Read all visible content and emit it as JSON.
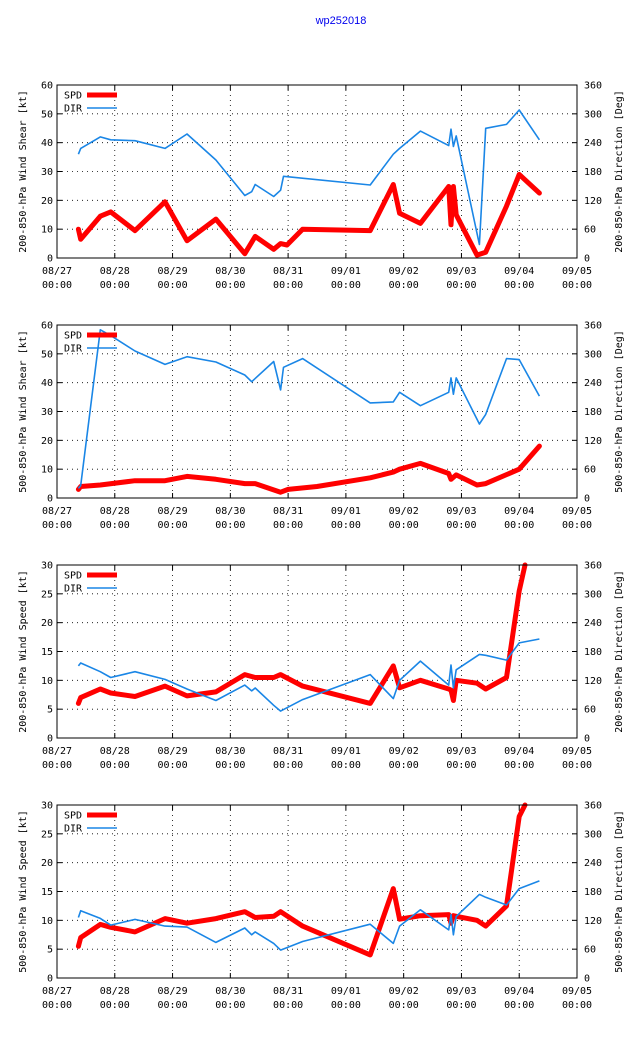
{
  "title": "wp252018",
  "colors": {
    "spd": "#ff0000",
    "dir": "#1a86e6",
    "title": "#0000ee"
  },
  "chart_data": [
    {
      "type": "line",
      "ylabel_left": "200-850-hPa Wind Shear [kt]",
      "ylabel_right": "200-850-hPa Direction [Deg]",
      "ylim": [
        0,
        60
      ],
      "yticks": [
        0,
        10,
        20,
        30,
        40,
        50,
        60
      ],
      "y2lim": [
        0,
        360
      ],
      "y2ticks": [
        0,
        60,
        120,
        180,
        240,
        300,
        360
      ],
      "xlim": [
        0,
        9
      ],
      "xticks": [
        {
          "value": 0,
          "date": "08/27",
          "time": "00:00"
        },
        {
          "value": 1,
          "date": "08/28",
          "time": "00:00"
        },
        {
          "value": 2,
          "date": "08/29",
          "time": "00:00"
        },
        {
          "value": 3,
          "date": "08/30",
          "time": "00:00"
        },
        {
          "value": 4,
          "date": "08/31",
          "time": "00:00"
        },
        {
          "value": 5,
          "date": "09/01",
          "time": "00:00"
        },
        {
          "value": 6,
          "date": "09/02",
          "time": "00:00"
        },
        {
          "value": 7,
          "date": "09/03",
          "time": "00:00"
        },
        {
          "value": 8,
          "date": "09/04",
          "time": "00:00"
        },
        {
          "value": 9,
          "date": "09/05",
          "time": "00:00"
        }
      ],
      "legend": [
        "SPD",
        "DIR"
      ],
      "series": [
        {
          "name": "SPD",
          "axis": "left",
          "x": [
            0.37,
            0.41,
            0.75,
            0.93,
            1.35,
            1.87,
            2.25,
            2.75,
            3.25,
            3.43,
            3.75,
            3.87,
            3.98,
            4.25,
            5.42,
            5.82,
            5.93,
            6.29,
            6.78,
            6.82,
            6.86,
            6.91,
            7.27,
            7.42,
            7.78,
            8.0,
            8.35
          ],
          "y": [
            10,
            6.5,
            14.5,
            16,
            9.5,
            19.5,
            6,
            13.5,
            1.5,
            7.5,
            3,
            5,
            4.5,
            10,
            9.5,
            25.5,
            15.5,
            12,
            24.8,
            11.5,
            24.8,
            15,
            1,
            2,
            18,
            29,
            22.5
          ]
        },
        {
          "name": "DIR",
          "axis": "right",
          "x": [
            0.37,
            0.41,
            0.75,
            0.93,
            1.35,
            1.87,
            2.25,
            2.75,
            3.25,
            3.37,
            3.43,
            3.75,
            3.87,
            3.92,
            5.42,
            5.82,
            5.93,
            6.29,
            6.78,
            6.82,
            6.86,
            6.91,
            7.31,
            7.42,
            7.78,
            8.0,
            8.35
          ],
          "y": [
            216,
            228,
            252,
            246,
            244,
            228,
            258,
            204,
            130,
            138,
            153,
            128,
            141,
            170,
            152,
            216,
            228,
            264,
            234,
            268,
            232,
            254,
            28,
            270,
            278,
            308,
            246
          ]
        }
      ]
    },
    {
      "type": "line",
      "ylabel_left": "500-850-hPa Wind Shear [kt]",
      "ylabel_right": "500-850-hPa Direction [Deg]",
      "ylim": [
        0,
        60
      ],
      "yticks": [
        0,
        10,
        20,
        30,
        40,
        50,
        60
      ],
      "y2lim": [
        0,
        360
      ],
      "y2ticks": [
        0,
        60,
        120,
        180,
        240,
        300,
        360
      ],
      "xlim": [
        0,
        9
      ],
      "xticks": [
        {
          "value": 0,
          "date": "08/27",
          "time": "00:00"
        },
        {
          "value": 1,
          "date": "08/28",
          "time": "00:00"
        },
        {
          "value": 2,
          "date": "08/29",
          "time": "00:00"
        },
        {
          "value": 3,
          "date": "08/30",
          "time": "00:00"
        },
        {
          "value": 4,
          "date": "08/31",
          "time": "00:00"
        },
        {
          "value": 5,
          "date": "09/01",
          "time": "00:00"
        },
        {
          "value": 6,
          "date": "09/02",
          "time": "00:00"
        },
        {
          "value": 7,
          "date": "09/03",
          "time": "00:00"
        },
        {
          "value": 8,
          "date": "09/04",
          "time": "00:00"
        },
        {
          "value": 9,
          "date": "09/05",
          "time": "00:00"
        }
      ],
      "legend": [
        "SPD",
        "DIR"
      ],
      "series": [
        {
          "name": "SPD",
          "axis": "left",
          "x": [
            0.37,
            0.41,
            0.75,
            1.35,
            1.87,
            2.25,
            2.75,
            3.25,
            3.43,
            3.87,
            4.0,
            4.5,
            5.42,
            5.82,
            5.93,
            6.29,
            6.78,
            6.82,
            6.91,
            7.27,
            7.42,
            8.0,
            8.35
          ],
          "y": [
            3,
            4,
            4.5,
            6,
            6,
            7.5,
            6.5,
            5,
            5,
            2,
            3,
            4,
            7,
            9,
            10,
            12,
            8.5,
            6.5,
            8,
            4.5,
            5,
            10,
            18
          ]
        },
        {
          "name": "DIR",
          "axis": "right",
          "x": [
            0.37,
            0.41,
            0.75,
            0.93,
            1.35,
            1.87,
            2.25,
            2.75,
            3.25,
            3.37,
            3.75,
            3.87,
            3.92,
            4.25,
            5.42,
            5.82,
            5.93,
            6.29,
            6.78,
            6.82,
            6.86,
            6.91,
            7.31,
            7.42,
            7.78,
            8.0,
            8.35
          ],
          "y": [
            20,
            26,
            350,
            338,
            306,
            278,
            294,
            283,
            256,
            242,
            284,
            225,
            272,
            290,
            198,
            200,
            220,
            192,
            220,
            250,
            216,
            250,
            154,
            174,
            290,
            288,
            212
          ]
        }
      ]
    },
    {
      "type": "line",
      "ylabel_left": "200-850-hPa Wind Speed [kt]",
      "ylabel_right": "200-850-hPa Direction [Deg]",
      "ylim": [
        0,
        30
      ],
      "yticks": [
        0,
        5,
        10,
        15,
        20,
        25,
        30
      ],
      "y2lim": [
        0,
        360
      ],
      "y2ticks": [
        0,
        60,
        120,
        180,
        240,
        300,
        360
      ],
      "xlim": [
        0,
        9
      ],
      "xticks": [
        {
          "value": 0,
          "date": "08/27",
          "time": "00:00"
        },
        {
          "value": 1,
          "date": "08/28",
          "time": "00:00"
        },
        {
          "value": 2,
          "date": "08/29",
          "time": "00:00"
        },
        {
          "value": 3,
          "date": "08/30",
          "time": "00:00"
        },
        {
          "value": 4,
          "date": "08/31",
          "time": "00:00"
        },
        {
          "value": 5,
          "date": "09/01",
          "time": "00:00"
        },
        {
          "value": 6,
          "date": "09/02",
          "time": "00:00"
        },
        {
          "value": 7,
          "date": "09/03",
          "time": "00:00"
        },
        {
          "value": 8,
          "date": "09/04",
          "time": "00:00"
        },
        {
          "value": 9,
          "date": "09/05",
          "time": "00:00"
        }
      ],
      "legend": [
        "SPD",
        "DIR"
      ],
      "series": [
        {
          "name": "SPD",
          "axis": "left",
          "x": [
            0.37,
            0.41,
            0.75,
            0.93,
            1.35,
            1.87,
            2.25,
            2.75,
            3.25,
            3.43,
            3.75,
            3.87,
            4.25,
            5.42,
            5.82,
            5.93,
            6.29,
            6.78,
            6.82,
            6.86,
            6.91,
            7.27,
            7.42,
            7.78,
            8.0,
            8.1
          ],
          "y": [
            6,
            7,
            8.5,
            7.8,
            7.2,
            9,
            7.3,
            8,
            11,
            10.5,
            10.5,
            11,
            9,
            6,
            12.5,
            8.7,
            10,
            8.5,
            8.3,
            6.5,
            10,
            9.5,
            8.5,
            10.5,
            25.5,
            30
          ]
        },
        {
          "name": "DIR",
          "axis": "right",
          "x": [
            0.37,
            0.41,
            0.75,
            0.93,
            1.35,
            1.87,
            2.25,
            2.75,
            3.25,
            3.37,
            3.43,
            3.75,
            3.87,
            4.25,
            5.42,
            5.82,
            5.93,
            6.29,
            6.78,
            6.82,
            6.86,
            6.91,
            7.31,
            7.42,
            7.78,
            8.0,
            8.35
          ],
          "y": [
            150,
            156,
            138,
            126,
            138,
            122,
            102,
            78,
            110,
            98,
            104,
            68,
            56,
            80,
            132,
            82,
            120,
            160,
            110,
            152,
            104,
            142,
            174,
            172,
            162,
            198,
            206
          ]
        }
      ]
    },
    {
      "type": "line",
      "ylabel_left": "500-850-hPa Wind Speed [kt]",
      "ylabel_right": "500-850-hPa Direction [Deg]",
      "ylim": [
        0,
        30
      ],
      "yticks": [
        0,
        5,
        10,
        15,
        20,
        25,
        30
      ],
      "y2lim": [
        0,
        360
      ],
      "y2ticks": [
        0,
        60,
        120,
        180,
        240,
        300,
        360
      ],
      "xlim": [
        0,
        9
      ],
      "xticks": [
        {
          "value": 0,
          "date": "08/27",
          "time": "00:00"
        },
        {
          "value": 1,
          "date": "08/28",
          "time": "00:00"
        },
        {
          "value": 2,
          "date": "08/29",
          "time": "00:00"
        },
        {
          "value": 3,
          "date": "08/30",
          "time": "00:00"
        },
        {
          "value": 4,
          "date": "08/31",
          "time": "00:00"
        },
        {
          "value": 5,
          "date": "09/01",
          "time": "00:00"
        },
        {
          "value": 6,
          "date": "09/02",
          "time": "00:00"
        },
        {
          "value": 7,
          "date": "09/03",
          "time": "00:00"
        },
        {
          "value": 8,
          "date": "09/04",
          "time": "00:00"
        },
        {
          "value": 9,
          "date": "09/05",
          "time": "00:00"
        }
      ],
      "legend": [
        "SPD",
        "DIR"
      ],
      "series": [
        {
          "name": "SPD",
          "axis": "left",
          "x": [
            0.37,
            0.41,
            0.75,
            0.93,
            1.35,
            1.87,
            2.25,
            2.75,
            3.25,
            3.43,
            3.75,
            3.87,
            4.25,
            5.42,
            5.82,
            5.93,
            6.29,
            6.78,
            6.82,
            6.86,
            6.91,
            7.27,
            7.42,
            7.78,
            8.0,
            8.1
          ],
          "y": [
            5.5,
            7,
            9.3,
            8.8,
            8,
            10.3,
            9.5,
            10.3,
            11.5,
            10.5,
            10.7,
            11.5,
            9,
            4,
            15.5,
            10.2,
            10.8,
            11,
            9.5,
            10.8,
            10.7,
            10,
            9,
            12.5,
            28,
            30
          ]
        },
        {
          "name": "DIR",
          "axis": "right",
          "x": [
            0.37,
            0.41,
            0.75,
            0.93,
            1.35,
            1.87,
            2.25,
            2.75,
            3.25,
            3.37,
            3.43,
            3.75,
            3.87,
            4.25,
            5.42,
            5.82,
            5.93,
            6.29,
            6.78,
            6.82,
            6.86,
            6.91,
            7.31,
            7.42,
            7.78,
            8.0,
            8.35
          ],
          "y": [
            126,
            140,
            124,
            110,
            122,
            108,
            106,
            74,
            104,
            90,
            96,
            72,
            58,
            76,
            112,
            72,
            108,
            142,
            100,
            132,
            90,
            128,
            174,
            168,
            152,
            186,
            202
          ]
        }
      ]
    }
  ]
}
